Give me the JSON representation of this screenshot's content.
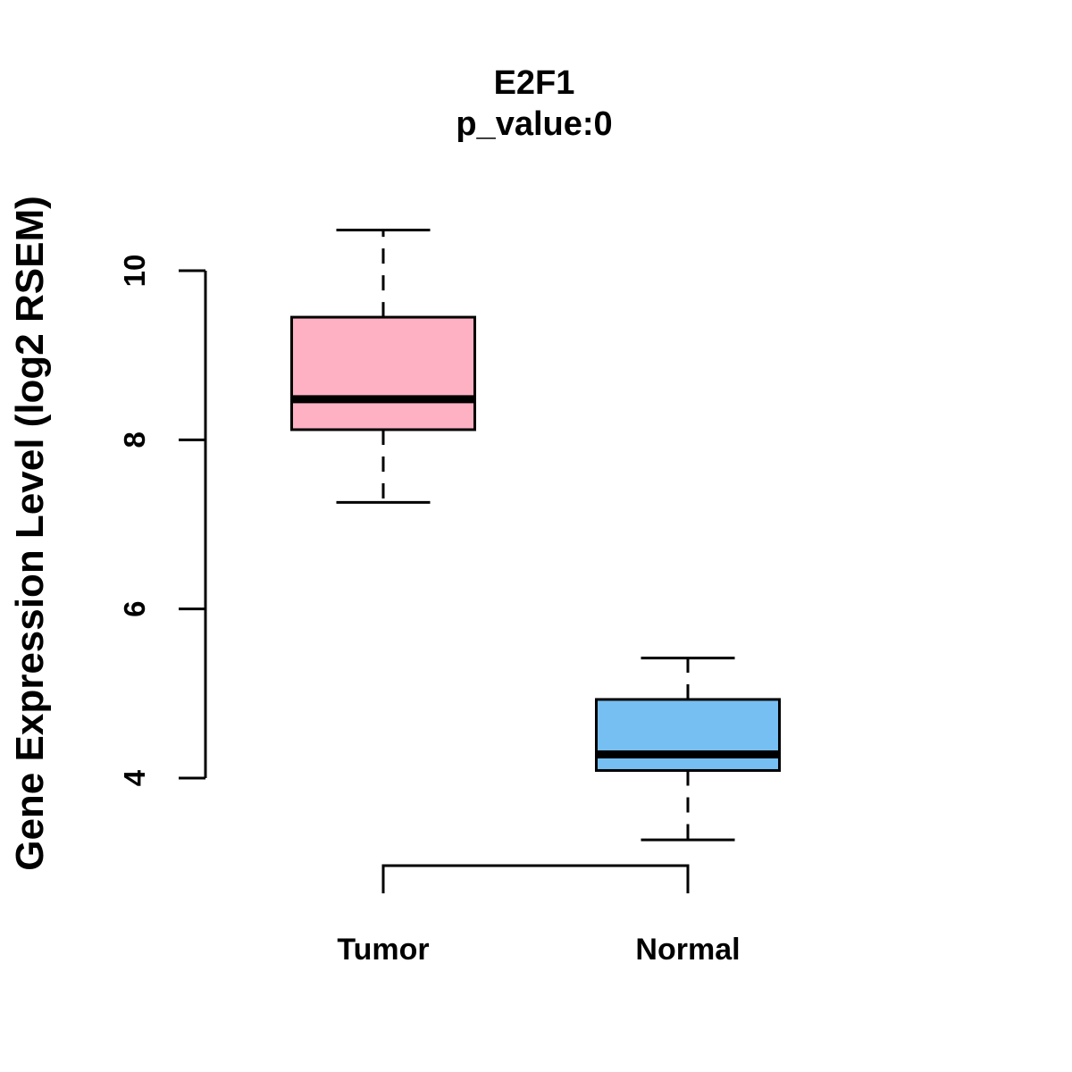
{
  "chart_data": {
    "type": "boxplot",
    "title": "E2F1",
    "subtitle": "p_value:0",
    "ylabel": "Gene Expression Level (log2 RSEM)",
    "xlabel": "",
    "yticks": [
      4,
      6,
      8,
      10
    ],
    "ylim": [
      3.0,
      10.7
    ],
    "grid": false,
    "legend": "none",
    "background_color": "#FFFFFF",
    "line_color": "#000000",
    "categories": [
      "Tumor",
      "Normal"
    ],
    "series": [
      {
        "name": "Tumor",
        "fill_color": "#FDB1C3",
        "whisker_low": 7.26,
        "q1": 8.12,
        "median": 8.48,
        "q3": 9.45,
        "whisker_high": 10.48,
        "outliers": []
      },
      {
        "name": "Normal",
        "fill_color": "#76BFF2",
        "whisker_low": 3.27,
        "q1": 4.09,
        "median": 4.28,
        "q3": 4.93,
        "whisker_high": 5.42,
        "outliers": []
      }
    ],
    "comparison_bracket": {
      "from": "Tumor",
      "to": "Normal"
    }
  }
}
